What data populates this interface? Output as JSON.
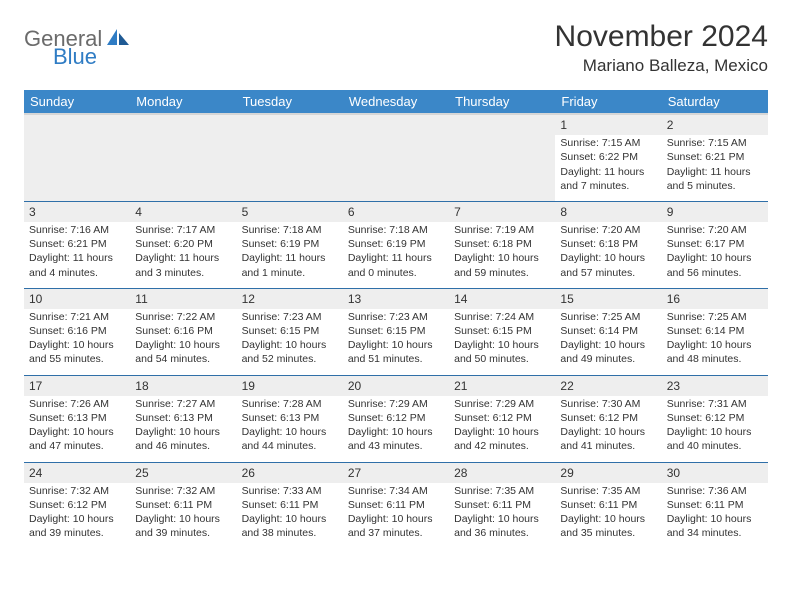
{
  "brand": {
    "name": "General",
    "sub": "Blue"
  },
  "title": "November 2024",
  "location": "Mariano Balleza, Mexico",
  "colors": {
    "header_bg": "#3b87c8",
    "header_text": "#ffffff",
    "row_border": "#2f6fa8",
    "shade_bg": "#eeeeee",
    "text": "#333333",
    "logo_gray": "#6b6b6b",
    "logo_blue": "#2f7cc4"
  },
  "typography": {
    "title_fontsize": 30,
    "location_fontsize": 17,
    "dayhead_fontsize": 13,
    "cell_fontsize": 10.5,
    "logo_fontsize": 22
  },
  "day_headers": [
    "Sunday",
    "Monday",
    "Tuesday",
    "Wednesday",
    "Thursday",
    "Friday",
    "Saturday"
  ],
  "weeks": [
    [
      {
        "n": "",
        "sr": "",
        "ss": "",
        "d1": "",
        "d2": ""
      },
      {
        "n": "",
        "sr": "",
        "ss": "",
        "d1": "",
        "d2": ""
      },
      {
        "n": "",
        "sr": "",
        "ss": "",
        "d1": "",
        "d2": ""
      },
      {
        "n": "",
        "sr": "",
        "ss": "",
        "d1": "",
        "d2": ""
      },
      {
        "n": "",
        "sr": "",
        "ss": "",
        "d1": "",
        "d2": ""
      },
      {
        "n": "1",
        "sr": "Sunrise: 7:15 AM",
        "ss": "Sunset: 6:22 PM",
        "d1": "Daylight: 11 hours",
        "d2": "and 7 minutes."
      },
      {
        "n": "2",
        "sr": "Sunrise: 7:15 AM",
        "ss": "Sunset: 6:21 PM",
        "d1": "Daylight: 11 hours",
        "d2": "and 5 minutes."
      }
    ],
    [
      {
        "n": "3",
        "sr": "Sunrise: 7:16 AM",
        "ss": "Sunset: 6:21 PM",
        "d1": "Daylight: 11 hours",
        "d2": "and 4 minutes."
      },
      {
        "n": "4",
        "sr": "Sunrise: 7:17 AM",
        "ss": "Sunset: 6:20 PM",
        "d1": "Daylight: 11 hours",
        "d2": "and 3 minutes."
      },
      {
        "n": "5",
        "sr": "Sunrise: 7:18 AM",
        "ss": "Sunset: 6:19 PM",
        "d1": "Daylight: 11 hours",
        "d2": "and 1 minute."
      },
      {
        "n": "6",
        "sr": "Sunrise: 7:18 AM",
        "ss": "Sunset: 6:19 PM",
        "d1": "Daylight: 11 hours",
        "d2": "and 0 minutes."
      },
      {
        "n": "7",
        "sr": "Sunrise: 7:19 AM",
        "ss": "Sunset: 6:18 PM",
        "d1": "Daylight: 10 hours",
        "d2": "and 59 minutes."
      },
      {
        "n": "8",
        "sr": "Sunrise: 7:20 AM",
        "ss": "Sunset: 6:18 PM",
        "d1": "Daylight: 10 hours",
        "d2": "and 57 minutes."
      },
      {
        "n": "9",
        "sr": "Sunrise: 7:20 AM",
        "ss": "Sunset: 6:17 PM",
        "d1": "Daylight: 10 hours",
        "d2": "and 56 minutes."
      }
    ],
    [
      {
        "n": "10",
        "sr": "Sunrise: 7:21 AM",
        "ss": "Sunset: 6:16 PM",
        "d1": "Daylight: 10 hours",
        "d2": "and 55 minutes."
      },
      {
        "n": "11",
        "sr": "Sunrise: 7:22 AM",
        "ss": "Sunset: 6:16 PM",
        "d1": "Daylight: 10 hours",
        "d2": "and 54 minutes."
      },
      {
        "n": "12",
        "sr": "Sunrise: 7:23 AM",
        "ss": "Sunset: 6:15 PM",
        "d1": "Daylight: 10 hours",
        "d2": "and 52 minutes."
      },
      {
        "n": "13",
        "sr": "Sunrise: 7:23 AM",
        "ss": "Sunset: 6:15 PM",
        "d1": "Daylight: 10 hours",
        "d2": "and 51 minutes."
      },
      {
        "n": "14",
        "sr": "Sunrise: 7:24 AM",
        "ss": "Sunset: 6:15 PM",
        "d1": "Daylight: 10 hours",
        "d2": "and 50 minutes."
      },
      {
        "n": "15",
        "sr": "Sunrise: 7:25 AM",
        "ss": "Sunset: 6:14 PM",
        "d1": "Daylight: 10 hours",
        "d2": "and 49 minutes."
      },
      {
        "n": "16",
        "sr": "Sunrise: 7:25 AM",
        "ss": "Sunset: 6:14 PM",
        "d1": "Daylight: 10 hours",
        "d2": "and 48 minutes."
      }
    ],
    [
      {
        "n": "17",
        "sr": "Sunrise: 7:26 AM",
        "ss": "Sunset: 6:13 PM",
        "d1": "Daylight: 10 hours",
        "d2": "and 47 minutes."
      },
      {
        "n": "18",
        "sr": "Sunrise: 7:27 AM",
        "ss": "Sunset: 6:13 PM",
        "d1": "Daylight: 10 hours",
        "d2": "and 46 minutes."
      },
      {
        "n": "19",
        "sr": "Sunrise: 7:28 AM",
        "ss": "Sunset: 6:13 PM",
        "d1": "Daylight: 10 hours",
        "d2": "and 44 minutes."
      },
      {
        "n": "20",
        "sr": "Sunrise: 7:29 AM",
        "ss": "Sunset: 6:12 PM",
        "d1": "Daylight: 10 hours",
        "d2": "and 43 minutes."
      },
      {
        "n": "21",
        "sr": "Sunrise: 7:29 AM",
        "ss": "Sunset: 6:12 PM",
        "d1": "Daylight: 10 hours",
        "d2": "and 42 minutes."
      },
      {
        "n": "22",
        "sr": "Sunrise: 7:30 AM",
        "ss": "Sunset: 6:12 PM",
        "d1": "Daylight: 10 hours",
        "d2": "and 41 minutes."
      },
      {
        "n": "23",
        "sr": "Sunrise: 7:31 AM",
        "ss": "Sunset: 6:12 PM",
        "d1": "Daylight: 10 hours",
        "d2": "and 40 minutes."
      }
    ],
    [
      {
        "n": "24",
        "sr": "Sunrise: 7:32 AM",
        "ss": "Sunset: 6:12 PM",
        "d1": "Daylight: 10 hours",
        "d2": "and 39 minutes."
      },
      {
        "n": "25",
        "sr": "Sunrise: 7:32 AM",
        "ss": "Sunset: 6:11 PM",
        "d1": "Daylight: 10 hours",
        "d2": "and 39 minutes."
      },
      {
        "n": "26",
        "sr": "Sunrise: 7:33 AM",
        "ss": "Sunset: 6:11 PM",
        "d1": "Daylight: 10 hours",
        "d2": "and 38 minutes."
      },
      {
        "n": "27",
        "sr": "Sunrise: 7:34 AM",
        "ss": "Sunset: 6:11 PM",
        "d1": "Daylight: 10 hours",
        "d2": "and 37 minutes."
      },
      {
        "n": "28",
        "sr": "Sunrise: 7:35 AM",
        "ss": "Sunset: 6:11 PM",
        "d1": "Daylight: 10 hours",
        "d2": "and 36 minutes."
      },
      {
        "n": "29",
        "sr": "Sunrise: 7:35 AM",
        "ss": "Sunset: 6:11 PM",
        "d1": "Daylight: 10 hours",
        "d2": "and 35 minutes."
      },
      {
        "n": "30",
        "sr": "Sunrise: 7:36 AM",
        "ss": "Sunset: 6:11 PM",
        "d1": "Daylight: 10 hours",
        "d2": "and 34 minutes."
      }
    ]
  ]
}
